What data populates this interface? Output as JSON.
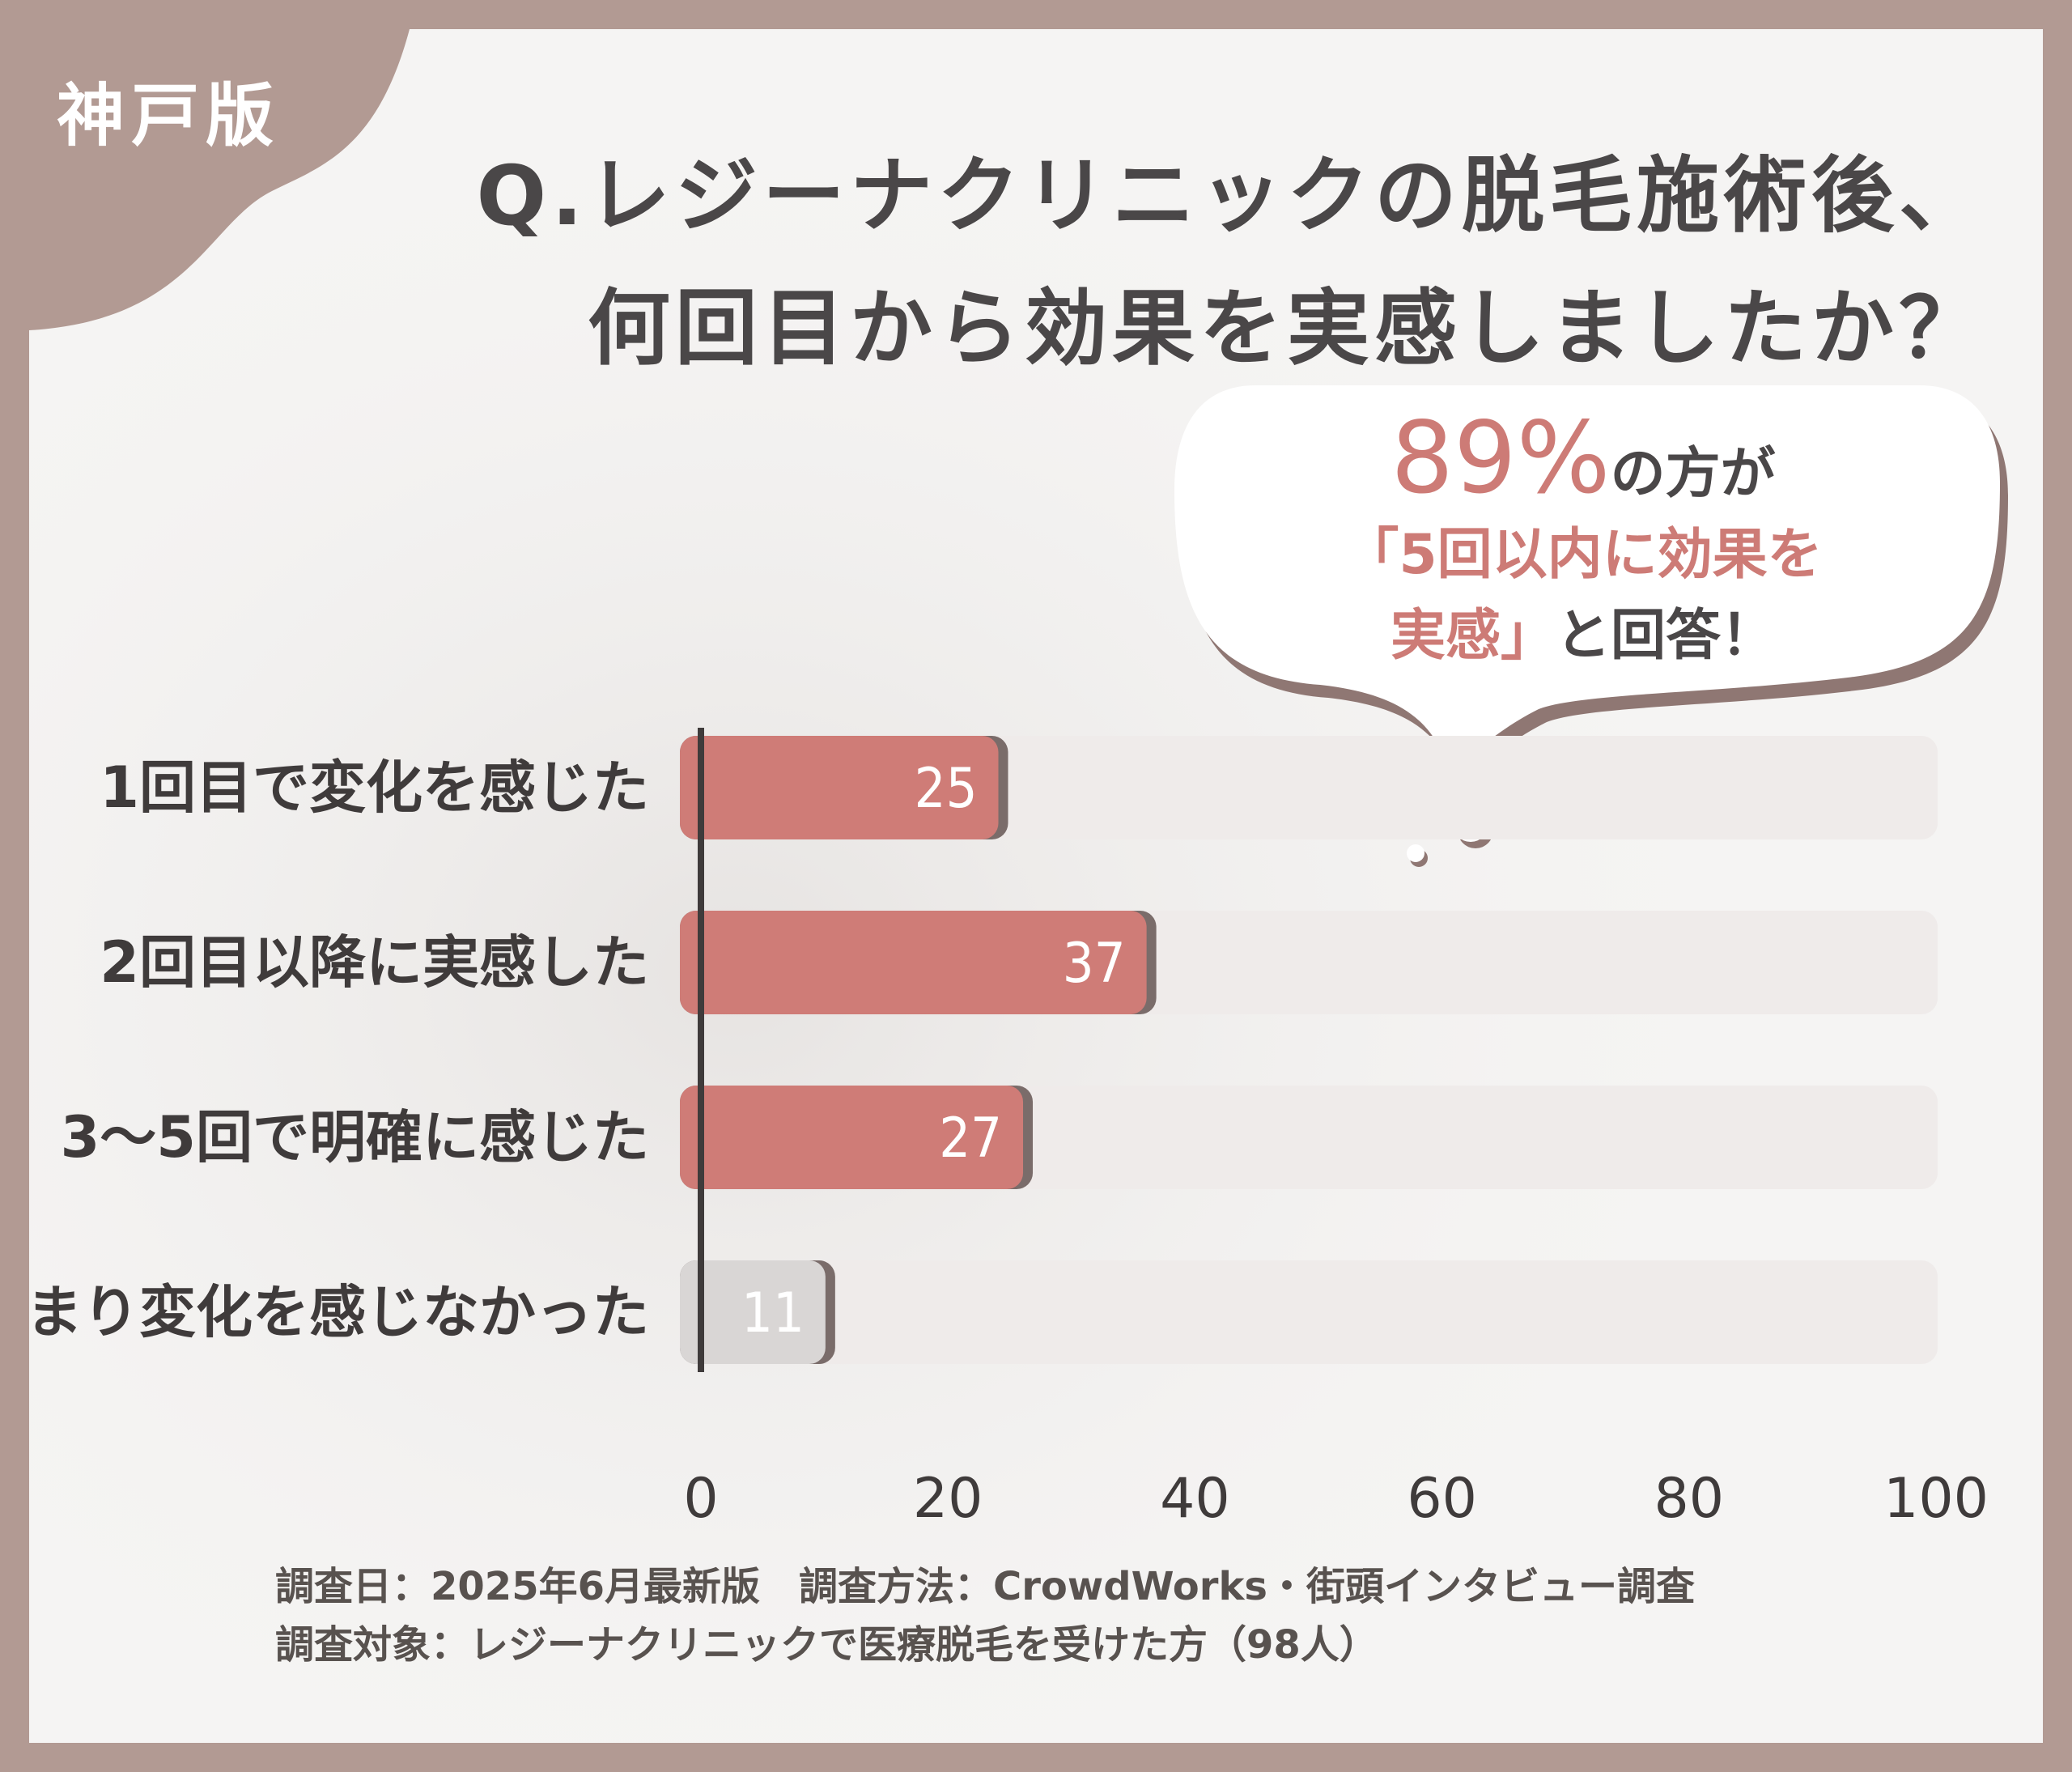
{
  "region_badge": "神戸版",
  "title": {
    "line1": "Q.レジーナクリニックの脱毛施術後、",
    "line2": "何回目から効果を実感しましたか？"
  },
  "callout": {
    "percent": "89%",
    "line1_suffix": "の方が",
    "line2": "「5回以内に効果を",
    "line3_accent": "実感」",
    "line3_suffix": "と回答！"
  },
  "chart_data": {
    "type": "bar",
    "orientation": "horizontal",
    "categories": [
      "1回目で変化を感じた",
      "2回目以降に実感した",
      "3〜5回で明確に感じた",
      "あまり変化を感じなかった"
    ],
    "values": [
      25,
      37,
      27,
      11
    ],
    "data_labels": [
      "25",
      "37",
      "27",
      "11"
    ],
    "xlim": [
      0,
      100
    ],
    "ticks": [
      "0",
      "20",
      "40",
      "60",
      "80",
      "100"
    ],
    "grid": false,
    "colors": {
      "highlight": "#cf7c77",
      "muted": "#d9d6d5",
      "track": "#efebea",
      "axis": "#3f3b3b"
    },
    "highlighted": [
      true,
      true,
      true,
      false
    ]
  },
  "footer": {
    "line1": "調査日：2025年6月最新版　調査方法：CrowdWorks・街頭インタビュー調査",
    "line2": "調査対象：レジーナクリニックで医療脱毛を受けた方（98人）"
  }
}
